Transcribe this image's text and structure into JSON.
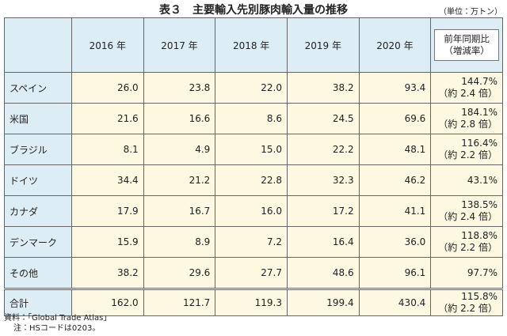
{
  "header": {
    "title": "表３　主要輸入先別豚肉輸入量の推移",
    "unit": "（単位：万トン）"
  },
  "table": {
    "columns": [
      "2016 年",
      "2017 年",
      "2018 年",
      "2019 年",
      "2020 年"
    ],
    "change_header": [
      "前年同期比",
      "（増減率）"
    ],
    "rows": [
      {
        "name": "スペイン",
        "values": [
          "26.0",
          "23.8",
          "22.0",
          "38.2",
          "93.4"
        ],
        "change": [
          "144.7%",
          "（約 2.4 倍）"
        ]
      },
      {
        "name": "米国",
        "values": [
          "21.6",
          "16.6",
          "8.6",
          "24.5",
          "69.6"
        ],
        "change": [
          "184.1%",
          "（約 2.8 倍）"
        ]
      },
      {
        "name": "ブラジル",
        "values": [
          "8.1",
          "4.9",
          "15.0",
          "22.2",
          "48.1"
        ],
        "change": [
          "116.4%",
          "（約 2.2 倍）"
        ]
      },
      {
        "name": "ドイツ",
        "values": [
          "34.4",
          "21.2",
          "22.8",
          "32.3",
          "46.2"
        ],
        "change": [
          "43.1%"
        ]
      },
      {
        "name": "カナダ",
        "values": [
          "17.9",
          "16.7",
          "16.0",
          "17.2",
          "41.1"
        ],
        "change": [
          "138.5%",
          "（約 2.4 倍）"
        ]
      },
      {
        "name": "デンマーク",
        "values": [
          "15.9",
          "8.9",
          "7.2",
          "16.4",
          "36.0"
        ],
        "change": [
          "118.8%",
          "（約 2.2 倍）"
        ]
      },
      {
        "name": "その他",
        "values": [
          "38.2",
          "29.6",
          "27.7",
          "48.6",
          "96.1"
        ],
        "change": [
          "97.7%"
        ]
      },
      {
        "name": "合計",
        "values": [
          "162.0",
          "121.7",
          "119.3",
          "199.4",
          "430.4"
        ],
        "change": [
          "115.8%",
          "（約 2.2 倍）"
        ]
      }
    ]
  },
  "notes": [
    "資料：「Global Trade Atlas」",
    "注：HSコードは0203。"
  ]
}
